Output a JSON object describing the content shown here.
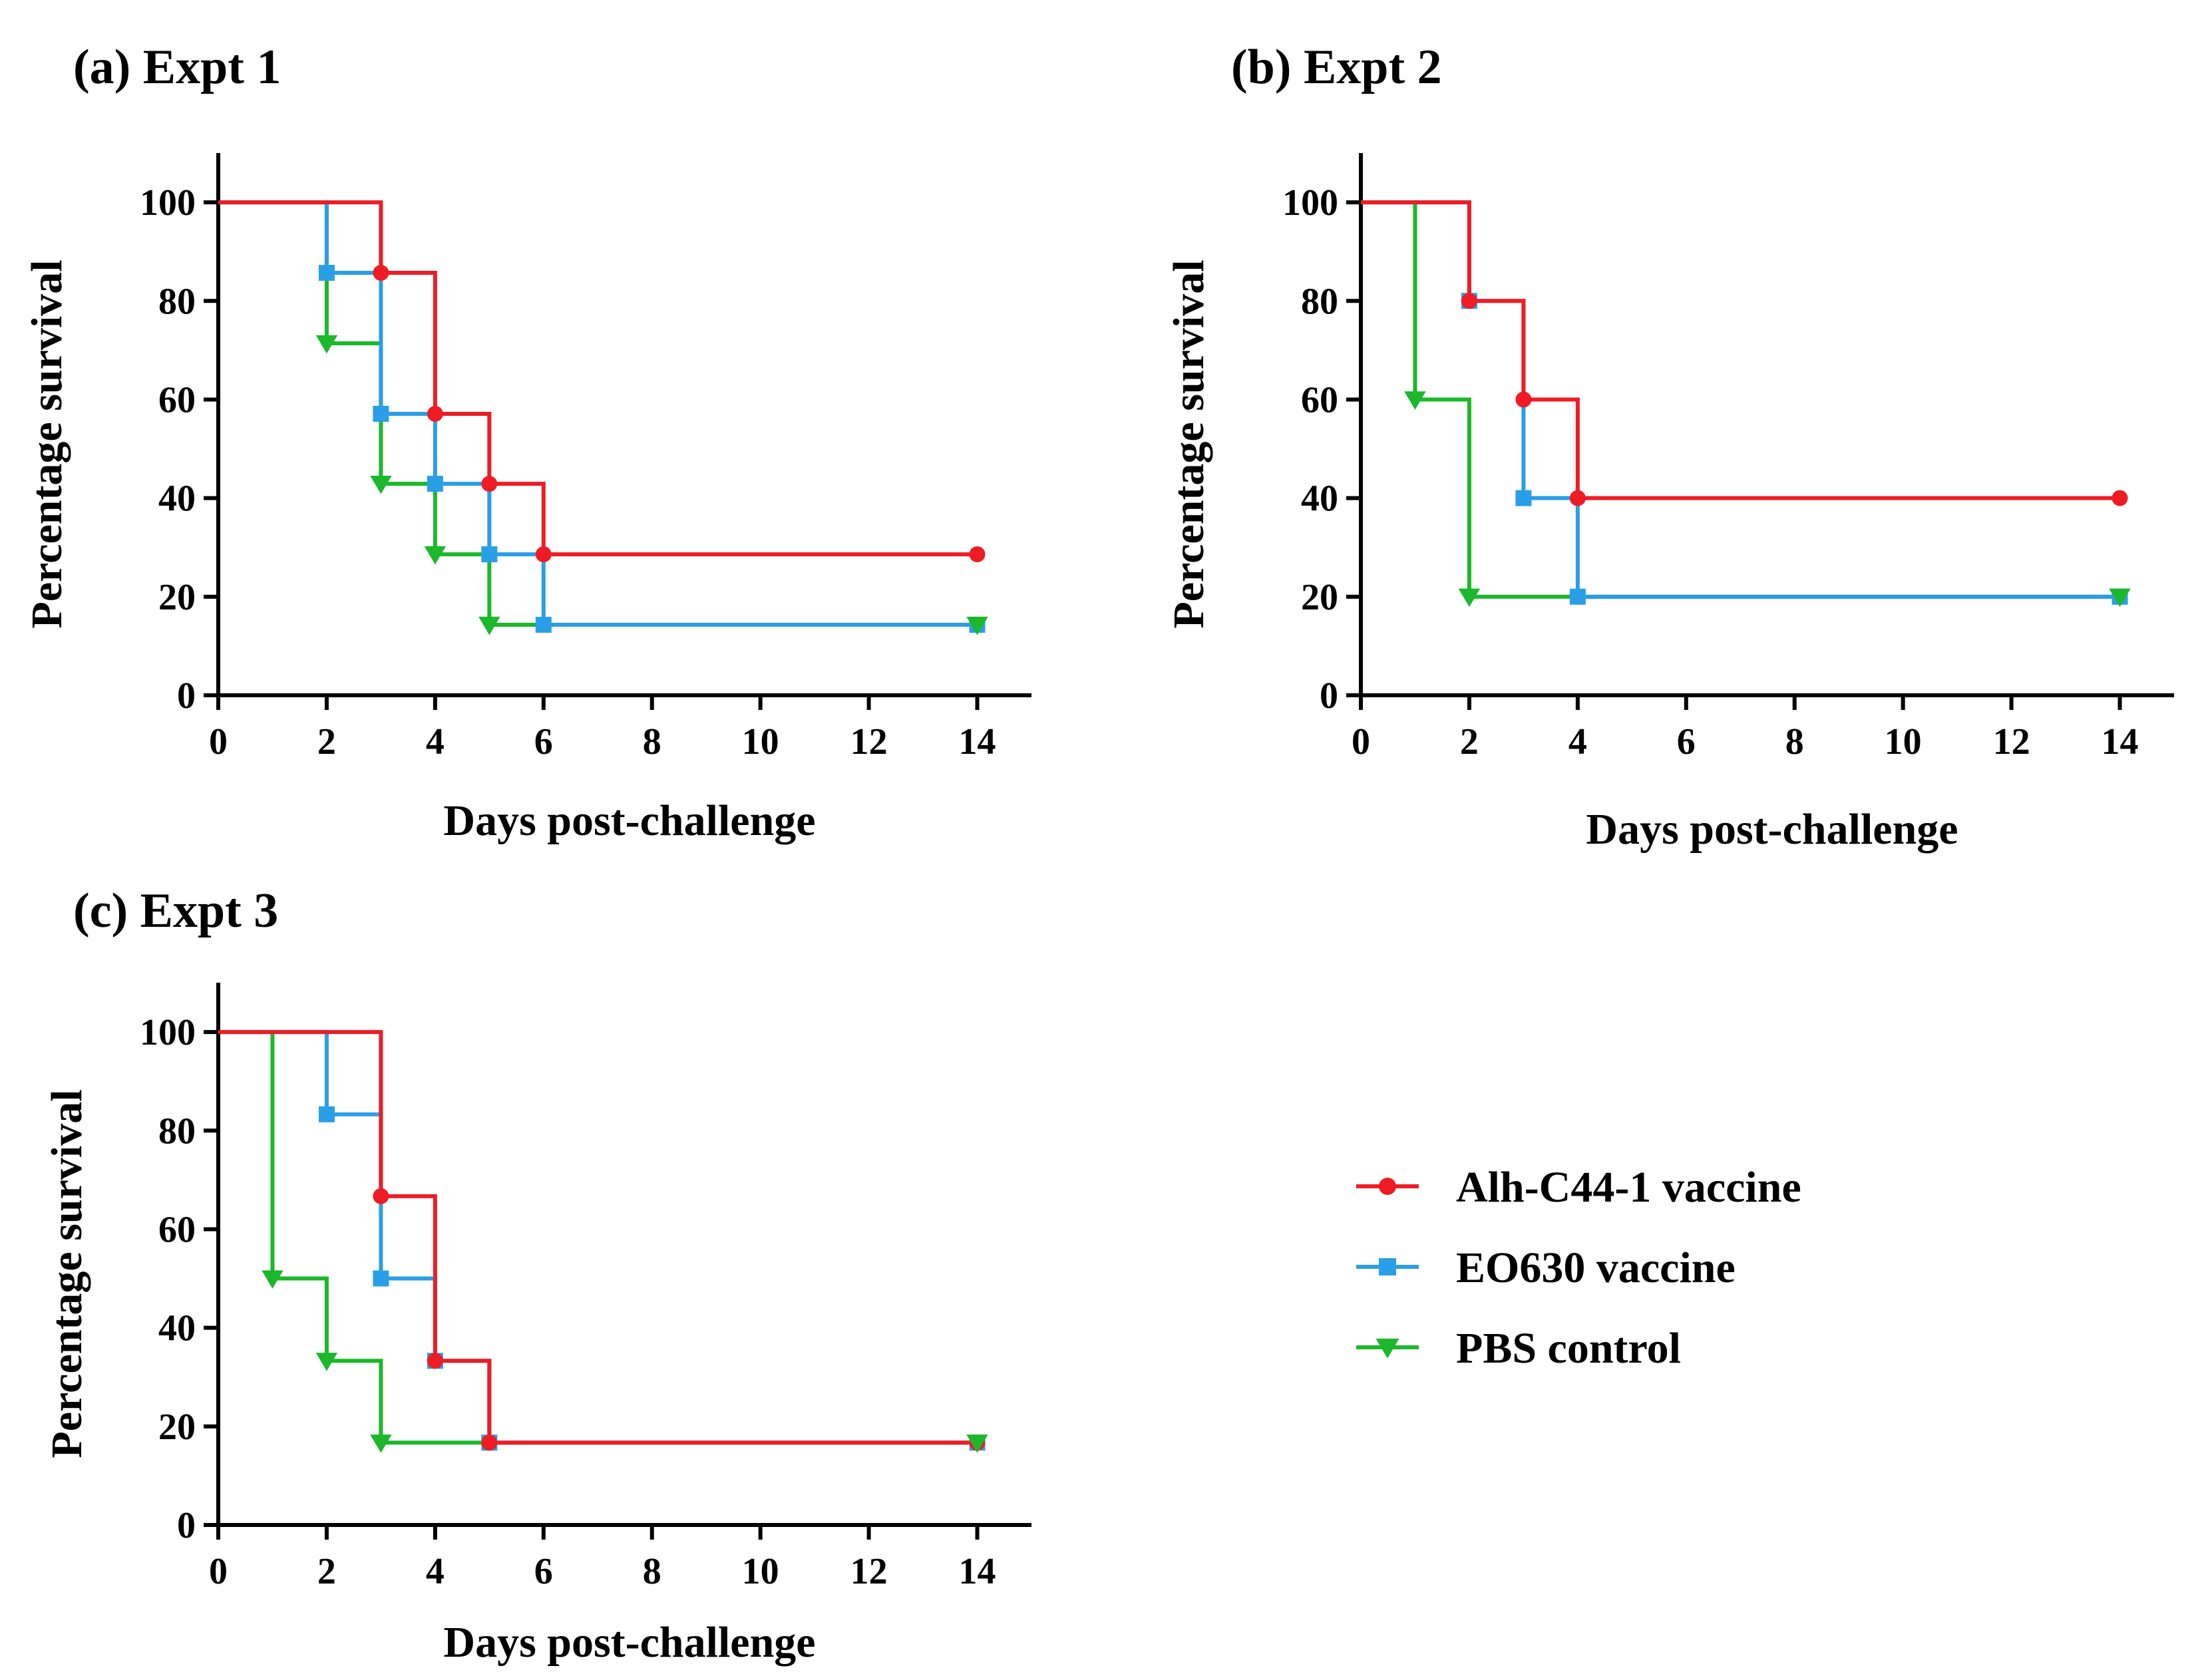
{
  "figure": {
    "legend": {
      "position": "right-middle",
      "entries": [
        {
          "name": "Alh-C44-1 vaccine",
          "color": "#ee1c25",
          "marker": "circle"
        },
        {
          "name": "EO630 vaccine",
          "color": "#2b9ee8",
          "marker": "square"
        },
        {
          "name": "PBS control",
          "color": "#1cb82b",
          "marker": "triangle-down"
        }
      ]
    }
  },
  "chart_data": [
    {
      "type": "line",
      "subtype": "kaplan-meier step",
      "title": "(a) Expt 1",
      "xlabel": "Days post-challenge",
      "ylabel": "Percentage survival",
      "xlim": [
        0,
        15
      ],
      "ylim": [
        0,
        110
      ],
      "xticks": [
        0,
        2,
        4,
        6,
        8,
        10,
        12,
        14
      ],
      "yticks": [
        0,
        20,
        40,
        60,
        80,
        100
      ],
      "grid": false,
      "series": [
        {
          "name": "Alh-C44-1 vaccine",
          "x": [
            0,
            3,
            4,
            5,
            6,
            14
          ],
          "y": [
            100,
            85.7,
            57.1,
            42.9,
            28.6,
            28.6
          ]
        },
        {
          "name": "EO630 vaccine",
          "x": [
            0,
            2,
            3,
            4,
            5,
            6,
            14
          ],
          "y": [
            100,
            85.7,
            57.1,
            42.9,
            28.6,
            14.3,
            14.3
          ]
        },
        {
          "name": "PBS control",
          "x": [
            0,
            2,
            3,
            4,
            5,
            14
          ],
          "y": [
            100,
            71.4,
            42.9,
            28.6,
            14.3,
            14.3
          ]
        }
      ]
    },
    {
      "type": "line",
      "subtype": "kaplan-meier step",
      "title": "(b) Expt 2",
      "xlabel": "Days post-challenge",
      "ylabel": "Percentage survival",
      "xlim": [
        0,
        15
      ],
      "ylim": [
        0,
        110
      ],
      "xticks": [
        0,
        2,
        4,
        6,
        8,
        10,
        12,
        14
      ],
      "yticks": [
        0,
        20,
        40,
        60,
        80,
        100
      ],
      "grid": false,
      "series": [
        {
          "name": "Alh-C44-1 vaccine",
          "x": [
            0,
            2,
            3,
            4,
            14
          ],
          "y": [
            100,
            80,
            60,
            40,
            40
          ]
        },
        {
          "name": "EO630 vaccine",
          "x": [
            0,
            2,
            3,
            4,
            14
          ],
          "y": [
            100,
            80,
            40,
            20,
            20
          ]
        },
        {
          "name": "PBS control",
          "x": [
            0,
            1,
            2,
            14
          ],
          "y": [
            100,
            60,
            20,
            20
          ]
        }
      ]
    },
    {
      "type": "line",
      "subtype": "kaplan-meier step",
      "title": "(c) Expt 3",
      "xlabel": "Days post-challenge",
      "ylabel": "Percentage survival",
      "xlim": [
        0,
        15
      ],
      "ylim": [
        0,
        110
      ],
      "xticks": [
        0,
        2,
        4,
        6,
        8,
        10,
        12,
        14
      ],
      "yticks": [
        0,
        20,
        40,
        60,
        80,
        100
      ],
      "grid": false,
      "series": [
        {
          "name": "Alh-C44-1 vaccine",
          "x": [
            0,
            3,
            4,
            5,
            14
          ],
          "y": [
            100,
            66.7,
            33.3,
            16.7,
            16.7
          ]
        },
        {
          "name": "EO630 vaccine",
          "x": [
            0,
            2,
            3,
            4,
            5,
            14
          ],
          "y": [
            100,
            83.3,
            50,
            33.3,
            16.7,
            16.7
          ]
        },
        {
          "name": "PBS control",
          "x": [
            0,
            1,
            2,
            3,
            14
          ],
          "y": [
            100,
            50,
            33.3,
            16.7,
            16.7
          ]
        }
      ]
    }
  ]
}
